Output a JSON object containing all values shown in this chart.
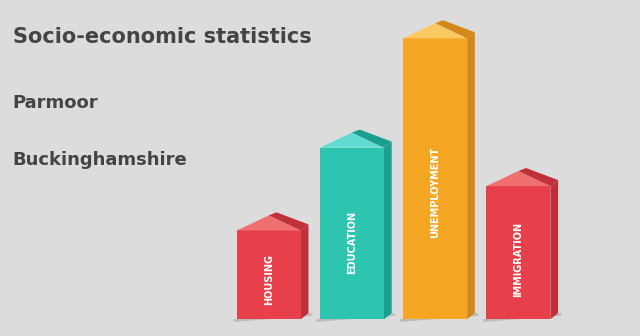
{
  "title_line1": "Socio-economic statistics",
  "title_line2": "Parmoor",
  "title_line3": "Buckinghamshire",
  "categories": [
    "HOUSING",
    "EDUCATION",
    "UNEMPLOYMENT",
    "IMMIGRATION"
  ],
  "values": [
    0.3,
    0.58,
    0.95,
    0.45
  ],
  "bar_colors": [
    "#E8404A",
    "#2DC5B0",
    "#F5A623",
    "#E8404A"
  ],
  "bar_colors_dark": [
    "#C0303A",
    "#1A9E8E",
    "#D4881A",
    "#C0303A"
  ],
  "bar_colors_light": [
    "#F07070",
    "#60DDD0",
    "#FAC860",
    "#F07070"
  ],
  "background_color": "#DCDCDC",
  "text_color": "#444444",
  "label_color": "#FFFFFF"
}
